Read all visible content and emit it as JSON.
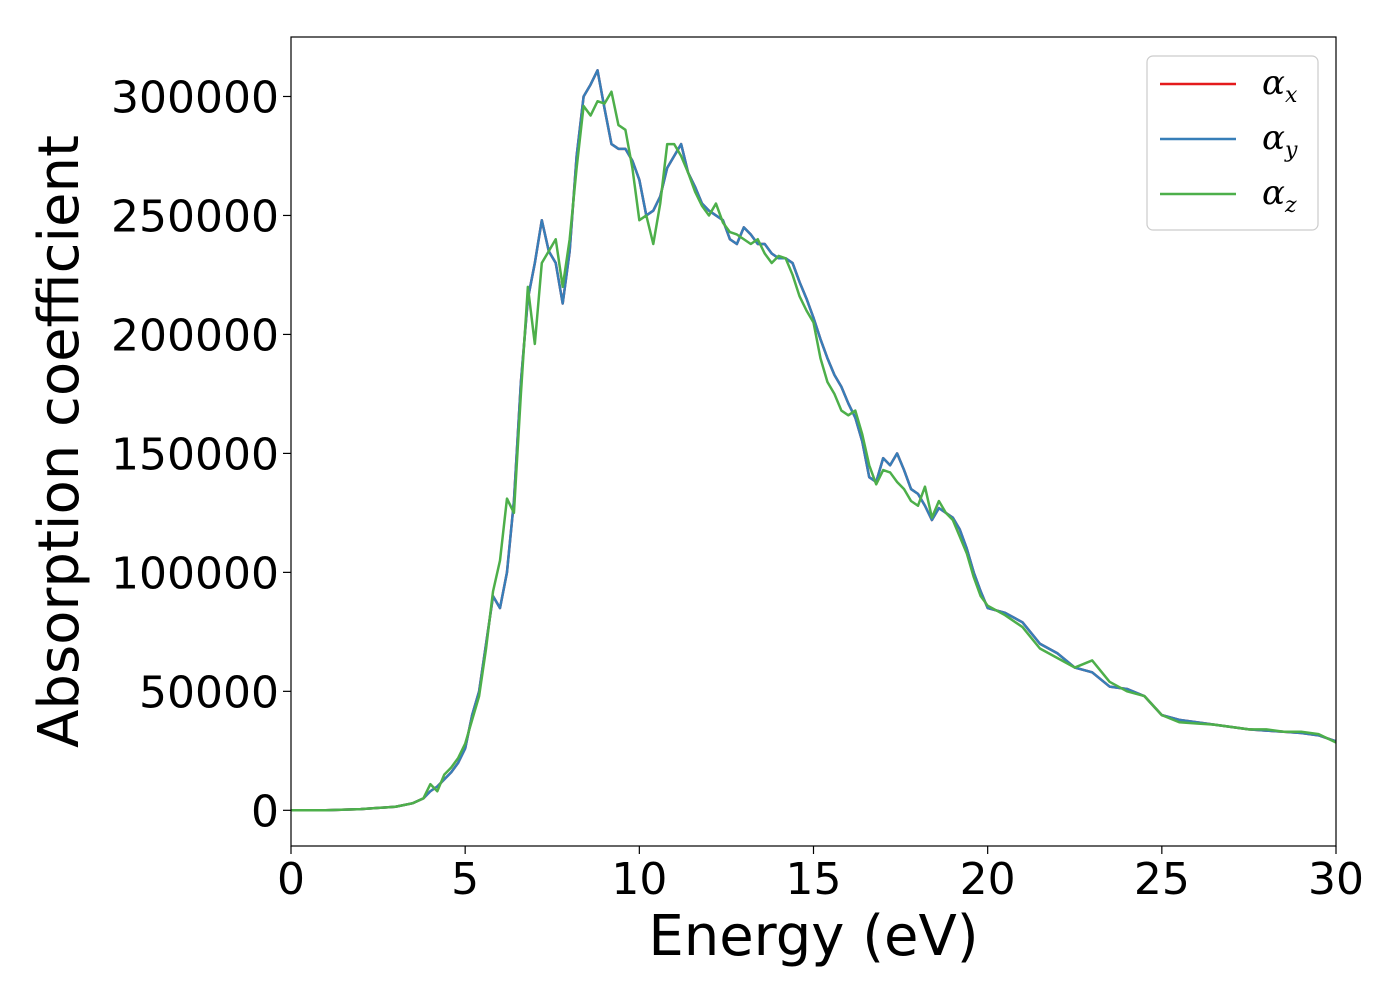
{
  "chart_data": {
    "type": "line",
    "xlabel": "Energy (eV)",
    "ylabel": "Absorption coefficient",
    "xlim": [
      0,
      30
    ],
    "ylim": [
      -15000,
      325000
    ],
    "xticks": [
      0,
      5,
      10,
      15,
      20,
      25,
      30
    ],
    "yticks": [
      0,
      50000,
      100000,
      150000,
      200000,
      250000,
      300000
    ],
    "grid": false,
    "legend_position": "top-right",
    "series": [
      {
        "name": "α",
        "subscript": "x",
        "color": "#e41a1c",
        "x": [
          0,
          1,
          2,
          3,
          3.5,
          3.8,
          4,
          4.2,
          4.4,
          4.6,
          4.8,
          5,
          5.2,
          5.4,
          5.6,
          5.8,
          6,
          6.2,
          6.4,
          6.6,
          6.8,
          7,
          7.2,
          7.4,
          7.6,
          7.8,
          8,
          8.2,
          8.4,
          8.6,
          8.8,
          9,
          9.2,
          9.4,
          9.6,
          9.8,
          10,
          10.2,
          10.4,
          10.6,
          10.8,
          11,
          11.2,
          11.4,
          11.6,
          11.8,
          12,
          12.2,
          12.4,
          12.6,
          12.8,
          13,
          13.2,
          13.4,
          13.6,
          13.8,
          14,
          14.2,
          14.4,
          14.6,
          14.8,
          15,
          15.2,
          15.4,
          15.6,
          15.8,
          16,
          16.2,
          16.4,
          16.6,
          16.8,
          17,
          17.2,
          17.4,
          17.6,
          17.8,
          18,
          18.2,
          18.4,
          18.6,
          18.8,
          19,
          19.2,
          19.4,
          19.6,
          19.8,
          20,
          20.5,
          21,
          21.5,
          22,
          22.5,
          23,
          23.5,
          24,
          24.5,
          25,
          25.5,
          26,
          26.5,
          27,
          27.5,
          28,
          28.5,
          29,
          29.5,
          30
        ],
        "y": [
          0,
          0,
          500,
          1500,
          3000,
          5000,
          8000,
          10000,
          13000,
          16000,
          20000,
          26000,
          40000,
          50000,
          70000,
          90000,
          85000,
          100000,
          130000,
          180000,
          215000,
          230000,
          248000,
          235000,
          230000,
          213000,
          235000,
          275000,
          300000,
          305000,
          311000,
          295000,
          280000,
          278000,
          278000,
          273000,
          265000,
          250000,
          252000,
          258000,
          270000,
          275000,
          280000,
          268000,
          262000,
          255000,
          252000,
          250000,
          248000,
          240000,
          238000,
          245000,
          242000,
          238000,
          238000,
          234000,
          232000,
          232000,
          230000,
          222000,
          215000,
          207000,
          198000,
          190000,
          183000,
          178000,
          171000,
          165000,
          155000,
          140000,
          138000,
          148000,
          145000,
          150000,
          143000,
          135000,
          133000,
          128000,
          122000,
          127000,
          125000,
          123000,
          118000,
          110000,
          100000,
          92000,
          85000,
          83000,
          79000,
          70000,
          66000,
          60000,
          58000,
          52000,
          51000,
          48000,
          40000,
          38000,
          37000,
          36000,
          35000,
          34000,
          33500,
          33000,
          32500,
          31500,
          29000
        ]
      },
      {
        "name": "α",
        "subscript": "y",
        "color": "#377eb8",
        "x": [
          0,
          1,
          2,
          3,
          3.5,
          3.8,
          4,
          4.2,
          4.4,
          4.6,
          4.8,
          5,
          5.2,
          5.4,
          5.6,
          5.8,
          6,
          6.2,
          6.4,
          6.6,
          6.8,
          7,
          7.2,
          7.4,
          7.6,
          7.8,
          8,
          8.2,
          8.4,
          8.6,
          8.8,
          9,
          9.2,
          9.4,
          9.6,
          9.8,
          10,
          10.2,
          10.4,
          10.6,
          10.8,
          11,
          11.2,
          11.4,
          11.6,
          11.8,
          12,
          12.2,
          12.4,
          12.6,
          12.8,
          13,
          13.2,
          13.4,
          13.6,
          13.8,
          14,
          14.2,
          14.4,
          14.6,
          14.8,
          15,
          15.2,
          15.4,
          15.6,
          15.8,
          16,
          16.2,
          16.4,
          16.6,
          16.8,
          17,
          17.2,
          17.4,
          17.6,
          17.8,
          18,
          18.2,
          18.4,
          18.6,
          18.8,
          19,
          19.2,
          19.4,
          19.6,
          19.8,
          20,
          20.5,
          21,
          21.5,
          22,
          22.5,
          23,
          23.5,
          24,
          24.5,
          25,
          25.5,
          26,
          26.5,
          27,
          27.5,
          28,
          28.5,
          29,
          29.5,
          30
        ],
        "y": [
          0,
          0,
          500,
          1500,
          3000,
          5000,
          8000,
          10000,
          13000,
          16000,
          20000,
          26000,
          40000,
          50000,
          70000,
          90000,
          85000,
          100000,
          130000,
          180000,
          215000,
          230000,
          248000,
          235000,
          230000,
          213000,
          235000,
          275000,
          300000,
          305000,
          311000,
          295000,
          280000,
          278000,
          278000,
          273000,
          265000,
          250000,
          252000,
          258000,
          270000,
          275000,
          280000,
          268000,
          262000,
          255000,
          252000,
          250000,
          248000,
          240000,
          238000,
          245000,
          242000,
          238000,
          238000,
          234000,
          232000,
          232000,
          230000,
          222000,
          215000,
          207000,
          198000,
          190000,
          183000,
          178000,
          171000,
          165000,
          155000,
          140000,
          138000,
          148000,
          145000,
          150000,
          143000,
          135000,
          133000,
          128000,
          122000,
          127000,
          125000,
          123000,
          118000,
          110000,
          100000,
          92000,
          85000,
          83000,
          79000,
          70000,
          66000,
          60000,
          58000,
          52000,
          51000,
          48000,
          40000,
          38000,
          37000,
          36000,
          35000,
          34000,
          33500,
          33000,
          32500,
          31500,
          29000
        ]
      },
      {
        "name": "α",
        "subscript": "z",
        "color": "#4daf4a",
        "x": [
          0,
          1,
          2,
          3,
          3.5,
          3.8,
          4,
          4.2,
          4.4,
          4.6,
          4.8,
          5,
          5.2,
          5.4,
          5.6,
          5.8,
          6,
          6.2,
          6.4,
          6.6,
          6.8,
          7,
          7.2,
          7.4,
          7.6,
          7.8,
          8,
          8.2,
          8.4,
          8.6,
          8.8,
          9,
          9.2,
          9.4,
          9.6,
          9.8,
          10,
          10.2,
          10.4,
          10.6,
          10.8,
          11,
          11.2,
          11.4,
          11.6,
          11.8,
          12,
          12.2,
          12.4,
          12.6,
          12.8,
          13,
          13.2,
          13.4,
          13.6,
          13.8,
          14,
          14.2,
          14.4,
          14.6,
          14.8,
          15,
          15.2,
          15.4,
          15.6,
          15.8,
          16,
          16.2,
          16.4,
          16.6,
          16.8,
          17,
          17.2,
          17.4,
          17.6,
          17.8,
          18,
          18.2,
          18.4,
          18.6,
          18.8,
          19,
          19.2,
          19.4,
          19.6,
          19.8,
          20,
          20.5,
          21,
          21.5,
          22,
          22.5,
          23,
          23.5,
          24,
          24.5,
          25,
          25.5,
          26,
          26.5,
          27,
          27.5,
          28,
          28.5,
          29,
          29.5,
          30
        ],
        "y": [
          0,
          0,
          500,
          1500,
          3000,
          5000,
          11000,
          8000,
          15000,
          18000,
          22000,
          28000,
          38000,
          48000,
          68000,
          92000,
          105000,
          131000,
          125000,
          175000,
          220000,
          196000,
          230000,
          235000,
          240000,
          220000,
          240000,
          270000,
          296000,
          292000,
          298000,
          297000,
          302000,
          288000,
          286000,
          270000,
          248000,
          250000,
          238000,
          255000,
          280000,
          280000,
          275000,
          268000,
          260000,
          254000,
          250000,
          255000,
          247000,
          243000,
          242000,
          240000,
          238000,
          240000,
          234000,
          230000,
          233000,
          232000,
          225000,
          216000,
          210000,
          205000,
          190000,
          180000,
          175000,
          168000,
          166000,
          168000,
          158000,
          145000,
          137000,
          143000,
          142000,
          138000,
          135000,
          130000,
          128000,
          136000,
          123000,
          130000,
          125000,
          122000,
          115000,
          108000,
          98000,
          90000,
          86000,
          82000,
          77000,
          68000,
          64000,
          60000,
          63000,
          54000,
          50000,
          48000,
          40000,
          37000,
          36500,
          36000,
          35000,
          34000,
          34000,
          33000,
          33000,
          32000,
          28500
        ]
      }
    ]
  }
}
